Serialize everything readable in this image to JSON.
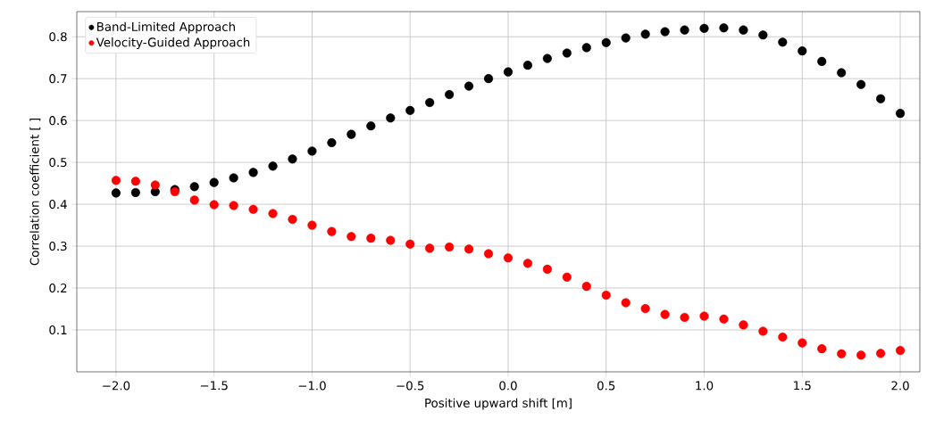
{
  "chart_data": {
    "type": "scatter",
    "xlabel": "Positive upward shift [m]",
    "ylabel": "Correlation coefficient [ ]",
    "x": [
      -2.0,
      -1.9,
      -1.8,
      -1.7,
      -1.6,
      -1.5,
      -1.4,
      -1.3,
      -1.2,
      -1.1,
      -1.0,
      -0.9,
      -0.8,
      -0.7,
      -0.6,
      -0.5,
      -0.4,
      -0.3,
      -0.2,
      -0.1,
      0.0,
      0.1,
      0.2,
      0.3,
      0.4,
      0.5,
      0.6,
      0.7,
      0.8,
      0.9,
      1.0,
      1.1,
      1.2,
      1.3,
      1.4,
      1.5,
      1.6,
      1.7,
      1.8,
      1.9,
      2.0
    ],
    "series": [
      {
        "name": "Band-Limited Approach",
        "color": "#000000",
        "values": [
          0.427,
          0.428,
          0.43,
          0.435,
          0.442,
          0.452,
          0.463,
          0.476,
          0.491,
          0.508,
          0.527,
          0.547,
          0.567,
          0.587,
          0.606,
          0.624,
          0.643,
          0.662,
          0.682,
          0.7,
          0.716,
          0.732,
          0.748,
          0.761,
          0.774,
          0.786,
          0.797,
          0.806,
          0.812,
          0.816,
          0.82,
          0.821,
          0.816,
          0.804,
          0.787,
          0.766,
          0.741,
          0.714,
          0.686,
          0.652,
          0.617
        ]
      },
      {
        "name": "Velocity-Guided Approach",
        "color": "#ff0000",
        "values": [
          0.457,
          0.455,
          0.446,
          0.43,
          0.41,
          0.399,
          0.397,
          0.388,
          0.378,
          0.364,
          0.35,
          0.335,
          0.323,
          0.319,
          0.314,
          0.305,
          0.295,
          0.298,
          0.293,
          0.282,
          0.272,
          0.259,
          0.245,
          0.226,
          0.204,
          0.183,
          0.165,
          0.151,
          0.137,
          0.13,
          0.133,
          0.126,
          0.112,
          0.097,
          0.083,
          0.069,
          0.055,
          0.043,
          0.04,
          0.044,
          0.051
        ]
      }
    ],
    "xlim": [
      -2.2,
      2.1
    ],
    "ylim": [
      0.0,
      0.86
    ],
    "xticks": [
      {
        "value": -2.0,
        "label": "−2.0"
      },
      {
        "value": -1.5,
        "label": "−1.5"
      },
      {
        "value": -1.0,
        "label": "−1.0"
      },
      {
        "value": -0.5,
        "label": "−0.5"
      },
      {
        "value": 0.0,
        "label": "0.0"
      },
      {
        "value": 0.5,
        "label": "0.5"
      },
      {
        "value": 1.0,
        "label": "1.0"
      },
      {
        "value": 1.5,
        "label": "1.5"
      },
      {
        "value": 2.0,
        "label": "2.0"
      }
    ],
    "yticks": [
      0.1,
      0.2,
      0.3,
      0.4,
      0.5,
      0.6,
      0.7,
      0.8
    ],
    "grid": true,
    "legend": "top left"
  }
}
